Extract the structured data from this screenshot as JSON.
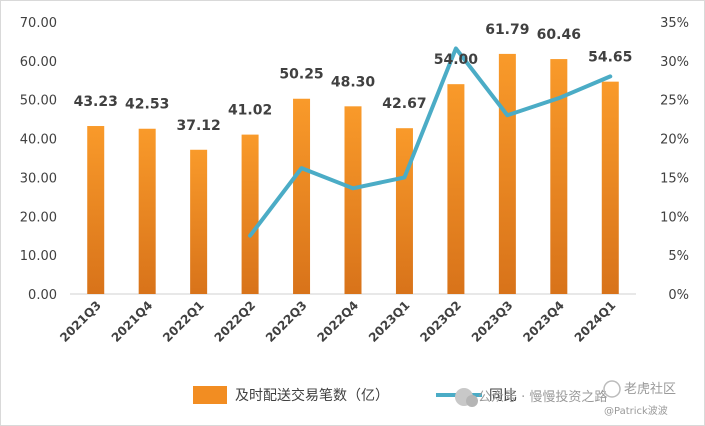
{
  "chart_data": {
    "type": "bar",
    "categories": [
      "2021Q3",
      "2021Q4",
      "2022Q1",
      "2022Q2",
      "2022Q3",
      "2022Q4",
      "2023Q1",
      "2023Q2",
      "2023Q3",
      "2023Q4",
      "2024Q1"
    ],
    "series": [
      {
        "name": "及时配送交易笔数（亿）",
        "type": "bar",
        "axis": "left",
        "color": "#f28d22",
        "values": [
          43.23,
          42.53,
          37.12,
          41.02,
          50.25,
          48.3,
          42.67,
          54.0,
          61.79,
          60.46,
          54.65
        ],
        "labels": [
          "43.23",
          "42.53",
          "37.12",
          "41.02",
          "50.25",
          "48.30",
          "42.67",
          "54.00",
          "61.79",
          "60.46",
          "54.65"
        ]
      },
      {
        "name": "同比",
        "type": "line",
        "axis": "right",
        "color": "#4bacc6",
        "values": [
          null,
          null,
          null,
          7.5,
          16.2,
          13.6,
          15.0,
          31.6,
          23.0,
          25.2,
          28.0
        ]
      }
    ],
    "left_axis": {
      "min": 0,
      "max": 70,
      "ticks": [
        "0.00",
        "10.00",
        "20.00",
        "30.00",
        "40.00",
        "50.00",
        "60.00",
        "70.00"
      ]
    },
    "right_axis": {
      "min": 0,
      "max": 35,
      "ticks": [
        "0%",
        "5%",
        "10%",
        "15%",
        "20%",
        "25%",
        "30%",
        "35%"
      ]
    },
    "legend_position": "bottom",
    "gridlines": false
  },
  "watermark": {
    "text": "公众号 · 慢慢投资之路",
    "badge": "老虎社区",
    "sub": "@Patrick波波"
  }
}
